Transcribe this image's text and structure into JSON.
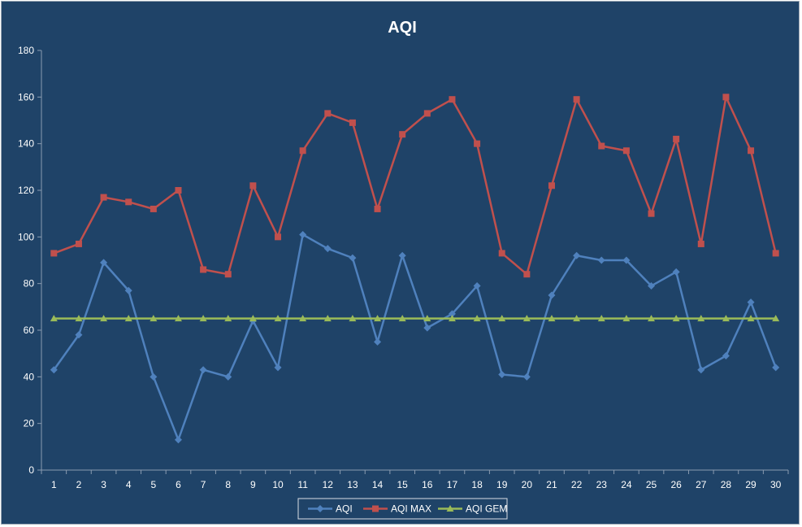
{
  "chart_data": {
    "type": "line",
    "title": "AQI",
    "xlabel": "",
    "ylabel": "",
    "ylim": [
      0,
      180
    ],
    "yticks": [
      0,
      20,
      40,
      60,
      80,
      100,
      120,
      140,
      160,
      180
    ],
    "grid": false,
    "legend_position": "bottom",
    "categories": [
      "1",
      "2",
      "3",
      "4",
      "5",
      "6",
      "7",
      "8",
      "9",
      "10",
      "11",
      "12",
      "13",
      "14",
      "15",
      "16",
      "17",
      "18",
      "19",
      "20",
      "21",
      "22",
      "23",
      "24",
      "25",
      "26",
      "27",
      "28",
      "29",
      "30"
    ],
    "series": [
      {
        "name": "AQI",
        "color": "#4f81bd",
        "marker": "diamond",
        "values": [
          43,
          58,
          89,
          77,
          40,
          13,
          43,
          40,
          64,
          44,
          101,
          95,
          91,
          55,
          92,
          61,
          67,
          79,
          41,
          40,
          75,
          92,
          90,
          90,
          79,
          85,
          43,
          49,
          72,
          44
        ]
      },
      {
        "name": "AQI MAX",
        "color": "#c0504d",
        "marker": "square",
        "values": [
          93,
          97,
          117,
          115,
          112,
          120,
          86,
          84,
          122,
          100,
          137,
          153,
          149,
          112,
          144,
          153,
          159,
          140,
          93,
          84,
          122,
          159,
          139,
          137,
          110,
          142,
          97,
          160,
          137,
          93
        ]
      },
      {
        "name": "AQI GEM",
        "color": "#9bbb59",
        "marker": "triangle",
        "values": [
          65,
          65,
          65,
          65,
          65,
          65,
          65,
          65,
          65,
          65,
          65,
          65,
          65,
          65,
          65,
          65,
          65,
          65,
          65,
          65,
          65,
          65,
          65,
          65,
          65,
          65,
          65,
          65,
          65,
          65
        ]
      }
    ]
  }
}
